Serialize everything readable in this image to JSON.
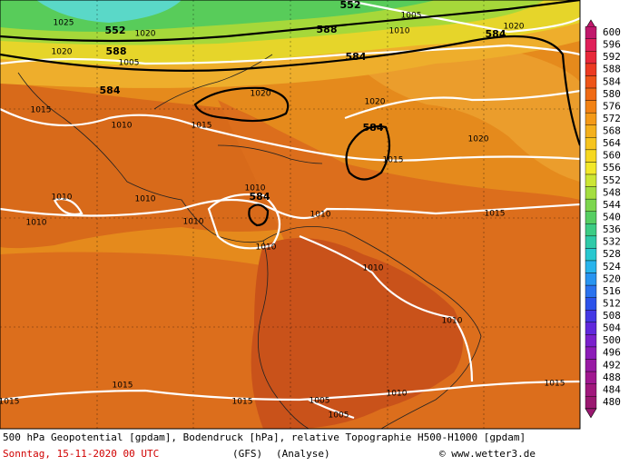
{
  "map": {
    "contour_labels": [
      "1025",
      "552",
      "1020",
      "1020",
      "588",
      "1005",
      "584",
      "1015",
      "1010",
      "1020",
      "1015",
      "552",
      "1005",
      "588",
      "1010",
      "1020",
      "584",
      "584",
      "1020",
      "584",
      "1020",
      "1015",
      "1010",
      "1010",
      "1010",
      "1010",
      "1010",
      "584",
      "1010",
      "1010",
      "1015",
      "1010",
      "1010",
      "1015",
      "1015",
      "1015",
      "1005",
      "1005",
      "1010",
      "1015"
    ]
  },
  "legend": {
    "labels": [
      600,
      596,
      592,
      588,
      584,
      580,
      576,
      572,
      568,
      564,
      560,
      556,
      552,
      548,
      544,
      540,
      536,
      532,
      528,
      524,
      520,
      516,
      512,
      508,
      504,
      500,
      496,
      492,
      488,
      484,
      480
    ]
  },
  "footer": {
    "description": "500 hPa Geopotential [gpdam], Bodendruck [hPa], relative Topographie H500-H1000 [gpdam]",
    "date": "Sonntag, 15-11-2020  00 UTC",
    "model": "(GFS)",
    "run": "(Analyse)",
    "credit": "© www.wetter3.de"
  }
}
